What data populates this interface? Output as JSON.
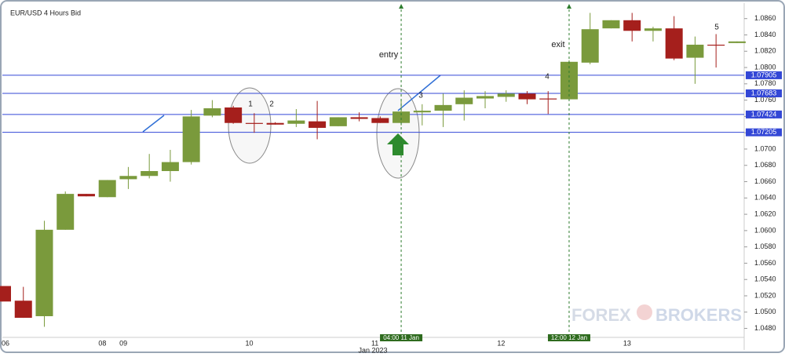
{
  "chart_data": {
    "type": "candlestick",
    "title": "EUR/USD  4 Hours Bid",
    "categories": [
      "06",
      null,
      null,
      null,
      null,
      "08",
      "09",
      null,
      null,
      null,
      null,
      null,
      "10",
      null,
      null,
      null,
      null,
      null,
      "11",
      null,
      null,
      null,
      null,
      null,
      "12",
      null,
      null,
      null,
      null,
      null,
      "13",
      null,
      null,
      null,
      null,
      null
    ],
    "x_sublabel": "Jan 2023",
    "candles": [
      {
        "open": 1.0532,
        "high": 1.0532,
        "low": 1.0513,
        "close": 1.0513
      },
      {
        "open": 1.0514,
        "high": 1.0531,
        "low": 1.0493,
        "close": 1.0493
      },
      {
        "open": 1.0495,
        "high": 1.0612,
        "low": 1.0482,
        "close": 1.0601
      },
      {
        "open": 1.0601,
        "high": 1.0648,
        "low": 1.0601,
        "close": 1.0645
      },
      {
        "open": 1.0645,
        "high": 1.0645,
        "low": 1.0642,
        "close": 1.0642
      },
      {
        "open": 1.0641,
        "high": 1.0662,
        "low": 1.0641,
        "close": 1.0662
      },
      {
        "open": 1.0663,
        "high": 1.0678,
        "low": 1.0651,
        "close": 1.0667
      },
      {
        "open": 1.0667,
        "high": 1.0694,
        "low": 1.0664,
        "close": 1.0673
      },
      {
        "open": 1.0673,
        "high": 1.0699,
        "low": 1.066,
        "close": 1.0684
      },
      {
        "open": 1.0684,
        "high": 1.0748,
        "low": 1.0681,
        "close": 1.074
      },
      {
        "open": 1.0741,
        "high": 1.076,
        "low": 1.0739,
        "close": 1.075
      },
      {
        "open": 1.0751,
        "high": 1.0753,
        "low": 1.0731,
        "close": 1.0732
      },
      {
        "open": 1.0732,
        "high": 1.0744,
        "low": 1.072,
        "close": 1.0731
      },
      {
        "open": 1.0732,
        "high": 1.0733,
        "low": 1.073,
        "close": 1.073
      },
      {
        "open": 1.0731,
        "high": 1.0749,
        "low": 1.0727,
        "close": 1.0735
      },
      {
        "open": 1.0734,
        "high": 1.0759,
        "low": 1.0712,
        "close": 1.0726
      },
      {
        "open": 1.0728,
        "high": 1.0739,
        "low": 1.0728,
        "close": 1.0739
      },
      {
        "open": 1.0739,
        "high": 1.0745,
        "low": 1.0734,
        "close": 1.0737
      },
      {
        "open": 1.0738,
        "high": 1.074,
        "low": 1.0732,
        "close": 1.0732
      },
      {
        "open": 1.0732,
        "high": 1.076,
        "low": 1.0729,
        "close": 1.0746
      },
      {
        "open": 1.0745,
        "high": 1.0755,
        "low": 1.0729,
        "close": 1.0747
      },
      {
        "open": 1.0747,
        "high": 1.0768,
        "low": 1.0727,
        "close": 1.0754
      },
      {
        "open": 1.0755,
        "high": 1.0772,
        "low": 1.0735,
        "close": 1.0763
      },
      {
        "open": 1.0762,
        "high": 1.0771,
        "low": 1.075,
        "close": 1.0765
      },
      {
        "open": 1.0764,
        "high": 1.0772,
        "low": 1.0758,
        "close": 1.0768
      },
      {
        "open": 1.0768,
        "high": 1.0771,
        "low": 1.0755,
        "close": 1.0761
      },
      {
        "open": 1.0762,
        "high": 1.0771,
        "low": 1.0743,
        "close": 1.0761
      },
      {
        "open": 1.0761,
        "high": 1.0809,
        "low": 1.0761,
        "close": 1.0807
      },
      {
        "open": 1.0806,
        "high": 1.0867,
        "low": 1.0804,
        "close": 1.0847
      },
      {
        "open": 1.0848,
        "high": 1.0858,
        "low": 1.0848,
        "close": 1.0858
      },
      {
        "open": 1.0858,
        "high": 1.0867,
        "low": 1.0832,
        "close": 1.0845
      },
      {
        "open": 1.0845,
        "high": 1.085,
        "low": 1.0832,
        "close": 1.0848
      },
      {
        "open": 1.0848,
        "high": 1.0863,
        "low": 1.0809,
        "close": 1.0811
      },
      {
        "open": 1.0812,
        "high": 1.0838,
        "low": 1.078,
        "close": 1.0828
      },
      {
        "open": 1.0828,
        "high": 1.0841,
        "low": 1.08,
        "close": 1.0827
      },
      {
        "open": 1.083,
        "high": 1.0832,
        "low": 1.083,
        "close": 1.0832
      }
    ],
    "up_color": "#7a9a3c",
    "down_color": "#a51f1c",
    "ylim": [
      1.0469,
      1.0878
    ],
    "yticks": [
      {
        "value": 1.086,
        "label": "1.0860"
      },
      {
        "value": 1.084,
        "label": "1.0840"
      },
      {
        "value": 1.082,
        "label": "1.0820"
      },
      {
        "value": 1.08,
        "label": "1.0800"
      },
      {
        "value": 1.078,
        "label": "1.0780"
      },
      {
        "value": 1.076,
        "label": "1.0760"
      },
      {
        "value": 1.074,
        "label": "1.0740"
      },
      {
        "value": 1.072,
        "label": "1.0720"
      },
      {
        "value": 1.07,
        "label": "1.0700"
      },
      {
        "value": 1.068,
        "label": "1.0680"
      },
      {
        "value": 1.066,
        "label": "1.0660"
      },
      {
        "value": 1.064,
        "label": "1.0640"
      },
      {
        "value": 1.062,
        "label": "1.0620"
      },
      {
        "value": 1.06,
        "label": "1.0600"
      },
      {
        "value": 1.058,
        "label": "1.0580"
      },
      {
        "value": 1.056,
        "label": "1.0560"
      },
      {
        "value": 1.054,
        "label": "1.0540"
      },
      {
        "value": 1.052,
        "label": "1.0520"
      },
      {
        "value": 1.05,
        "label": "1.0500"
      },
      {
        "value": 1.048,
        "label": "1.0480"
      }
    ],
    "levels": [
      1.07905,
      1.07683,
      1.07424,
      1.07205
    ],
    "level_color": "#3347d6",
    "markers": [
      {
        "candle": 19,
        "label": "04:00 11 Jan",
        "text": "entry"
      },
      {
        "candle": 27,
        "label": "12:00 12 Jan",
        "text": "exit"
      }
    ],
    "annotations": [
      "1",
      "2",
      "3",
      "4",
      "5"
    ],
    "watermark": [
      "FOREX",
      "BROKERS"
    ]
  }
}
